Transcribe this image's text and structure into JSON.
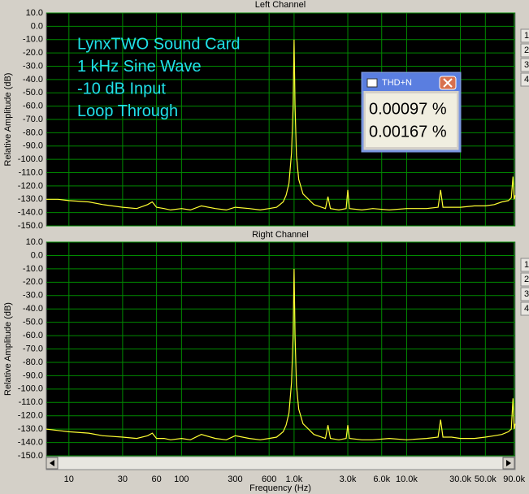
{
  "chart_data": [
    {
      "type": "line",
      "title": "Left Channel",
      "ylabel": "Relative Amplitude (dB)",
      "color": "#ffff33",
      "xscale": "log",
      "grid": true,
      "annotation": [
        "LynxTWO Sound Card",
        "1 kHz Sine Wave",
        "-10 dB Input",
        "Loop Through"
      ],
      "x": [
        6.3,
        8,
        10,
        15,
        20,
        30,
        40,
        50,
        55,
        60,
        70,
        80,
        100,
        120,
        150,
        200,
        250,
        300,
        400,
        500,
        600,
        700,
        800,
        850,
        900,
        950,
        980,
        1000,
        1020,
        1050,
        1100,
        1200,
        1500,
        1900,
        2000,
        2100,
        2500,
        2900,
        3000,
        3100,
        4000,
        5000,
        7000,
        10000,
        15000,
        19000,
        20000,
        21000,
        25000,
        30000,
        40000,
        50000,
        60000,
        70000,
        80000,
        85000,
        88000,
        90000,
        92000
      ],
      "values": [
        -130,
        -130,
        -131,
        -132,
        -134,
        -136,
        -137,
        -134,
        -132,
        -136,
        -137,
        -138,
        -137,
        -138,
        -135,
        -137,
        -138,
        -136,
        -137,
        -138,
        -137,
        -136,
        -132,
        -127,
        -118,
        -95,
        -60,
        -10,
        -60,
        -97,
        -115,
        -126,
        -134,
        -137,
        -128,
        -137,
        -138,
        -137,
        -123,
        -137,
        -138,
        -137,
        -138,
        -137,
        -137,
        -136,
        -123,
        -136,
        -136,
        -136,
        -135,
        -135,
        -134,
        -132,
        -131,
        -129,
        -113,
        -130,
        -127
      ],
      "xlim": [
        6.3,
        92000
      ],
      "ylim": [
        -150,
        10
      ],
      "yticks": [
        {
          "value": 10,
          "label": "10.0"
        },
        {
          "value": 0,
          "label": "0.0"
        },
        {
          "value": -10,
          "label": "-10.0"
        },
        {
          "value": -20,
          "label": "-20.0"
        },
        {
          "value": -30,
          "label": "-30.0"
        },
        {
          "value": -40,
          "label": "-40.0"
        },
        {
          "value": -50,
          "label": "-50.0"
        },
        {
          "value": -60,
          "label": "-60.0"
        },
        {
          "value": -70,
          "label": "-70.0"
        },
        {
          "value": -80,
          "label": "-80.0"
        },
        {
          "value": -90,
          "label": "-90.0"
        },
        {
          "value": -100,
          "label": "-100.0"
        },
        {
          "value": -110,
          "label": "-110.0"
        },
        {
          "value": -120,
          "label": "-120.0"
        },
        {
          "value": -130,
          "label": "-130.0"
        },
        {
          "value": -140,
          "label": "-140.0"
        },
        {
          "value": -150,
          "label": "-150.0"
        }
      ]
    },
    {
      "type": "line",
      "title": "Right Channel",
      "ylabel": "Relative Amplitude (dB)",
      "xlabel": "Frequency (Hz)",
      "color": "#ffff33",
      "xscale": "log",
      "grid": true,
      "x": [
        6.3,
        8,
        10,
        15,
        20,
        30,
        40,
        50,
        55,
        60,
        70,
        80,
        100,
        120,
        150,
        200,
        250,
        300,
        400,
        500,
        600,
        700,
        800,
        850,
        900,
        950,
        980,
        1000,
        1020,
        1050,
        1100,
        1200,
        1500,
        1900,
        2000,
        2100,
        2500,
        2900,
        3000,
        3100,
        4000,
        5000,
        7000,
        10000,
        15000,
        19000,
        20000,
        21000,
        25000,
        30000,
        40000,
        50000,
        60000,
        70000,
        80000,
        85000,
        88000,
        90000,
        92000
      ],
      "values": [
        -130,
        -131,
        -132,
        -133,
        -135,
        -136,
        -137,
        -135,
        -133,
        -137,
        -137,
        -138,
        -137,
        -138,
        -134,
        -137,
        -138,
        -135,
        -137,
        -138,
        -137,
        -136,
        -132,
        -127,
        -118,
        -95,
        -60,
        -10,
        -60,
        -97,
        -115,
        -126,
        -134,
        -137,
        -127,
        -137,
        -138,
        -137,
        -127,
        -137,
        -138,
        -138,
        -137,
        -138,
        -137,
        -136,
        -123,
        -136,
        -136,
        -137,
        -137,
        -136,
        -135,
        -134,
        -132,
        -130,
        -107,
        -130,
        -126
      ],
      "xlim": [
        6.3,
        92000
      ],
      "ylim": [
        -150,
        10
      ],
      "xticks": [
        10,
        30,
        60,
        100,
        300,
        600,
        {
          "value": 1000,
          "label": "1.0k"
        },
        {
          "value": 3000,
          "label": "3.0k"
        },
        {
          "value": 6000,
          "label": "6.0k"
        },
        {
          "value": 10000,
          "label": "10.0k"
        },
        {
          "value": 30000,
          "label": "30.0k"
        },
        {
          "value": 50000,
          "label": "50.0k"
        },
        {
          "value": 90000,
          "label": "90.0k"
        }
      ],
      "yticks": [
        {
          "value": 10,
          "label": "10.0"
        },
        {
          "value": 0,
          "label": "0.0"
        },
        {
          "value": -10,
          "label": "-10.0"
        },
        {
          "value": -20,
          "label": "-20.0"
        },
        {
          "value": -30,
          "label": "-30.0"
        },
        {
          "value": -40,
          "label": "-40.0"
        },
        {
          "value": -50,
          "label": "-50.0"
        },
        {
          "value": -60,
          "label": "-60.0"
        },
        {
          "value": -70,
          "label": "-70.0"
        },
        {
          "value": -80,
          "label": "-80.0"
        },
        {
          "value": -90,
          "label": "-90.0"
        },
        {
          "value": -100,
          "label": "-100.0"
        },
        {
          "value": -110,
          "label": "-110.0"
        },
        {
          "value": -120,
          "label": "-120.0"
        },
        {
          "value": -130,
          "label": "-130.0"
        },
        {
          "value": -140,
          "label": "-140.0"
        },
        {
          "value": -150,
          "label": "-150.0"
        }
      ]
    }
  ],
  "thd_window": {
    "title": "THD+N",
    "readings": [
      "0.00097 %",
      "0.00167 %"
    ]
  },
  "side_buttons": [
    "1",
    "2",
    "3",
    "4"
  ]
}
